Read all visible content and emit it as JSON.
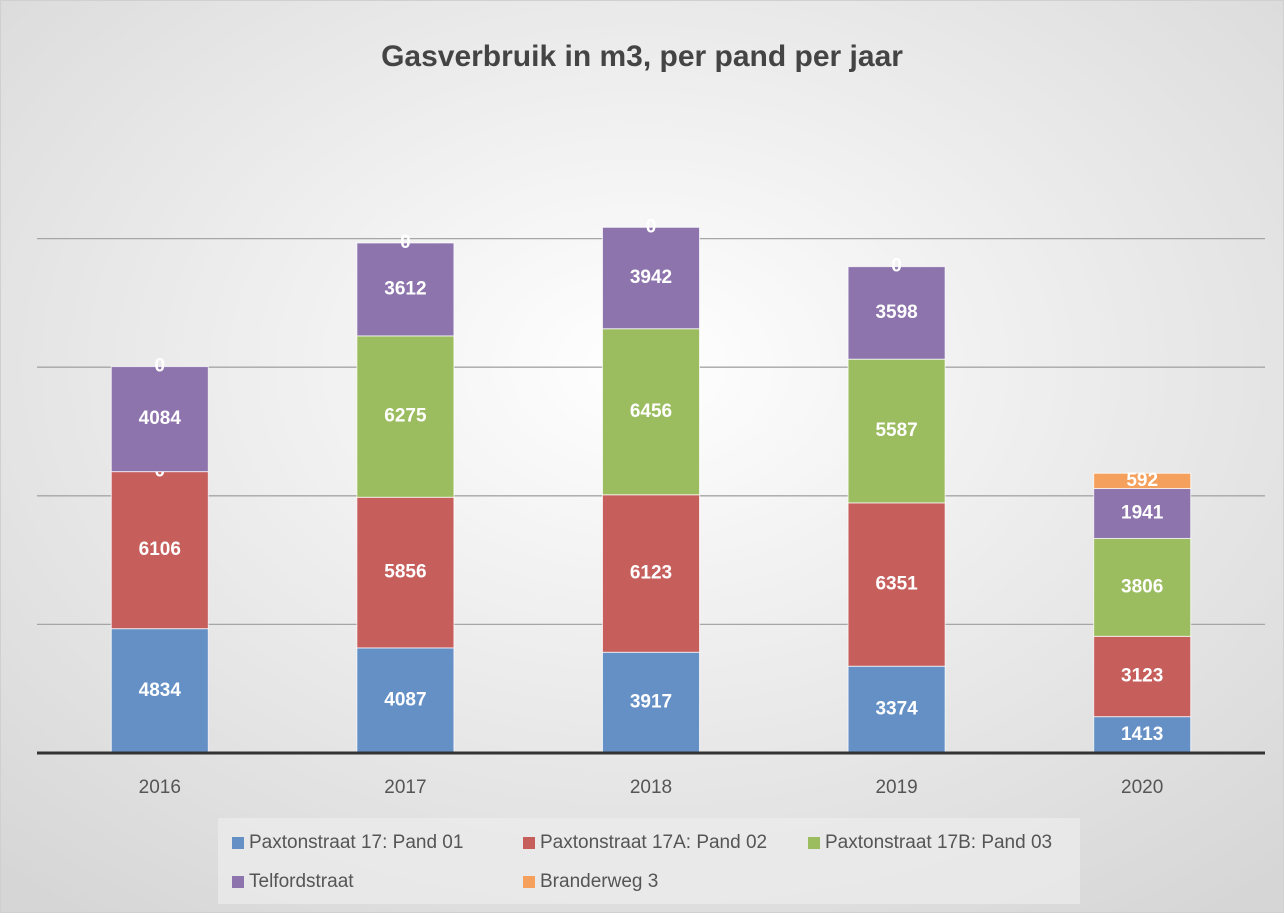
{
  "chart_data": {
    "type": "stacked_bar",
    "title": "Gasverbruik in m3, per pand per jaar",
    "categories": [
      "2016",
      "2017",
      "2018",
      "2019",
      "2020"
    ],
    "series": [
      {
        "name": "Paxtonstraat 17: Pand 01",
        "color": "#6590c6",
        "values": [
          4834,
          4087,
          3917,
          3374,
          1413
        ]
      },
      {
        "name": "Paxtonstraat 17A: Pand 02",
        "color": "#c65e5c",
        "values": [
          6106,
          5856,
          6123,
          6351,
          3123
        ]
      },
      {
        "name": "Paxtonstraat 17B: Pand 03",
        "color": "#9cbd5f",
        "values": [
          0,
          6275,
          6456,
          5587,
          3806
        ]
      },
      {
        "name": "Telfordstraat",
        "color": "#8d74ad",
        "values": [
          4084,
          3612,
          3942,
          3598,
          1941
        ]
      },
      {
        "name": "Branderweg 3",
        "color": "#f5a05c",
        "values": [
          0,
          0,
          0,
          0,
          592
        ]
      }
    ],
    "ylim": [
      0,
      25000
    ],
    "yticks": [
      5000,
      10000,
      15000,
      20000
    ],
    "grid": true
  }
}
